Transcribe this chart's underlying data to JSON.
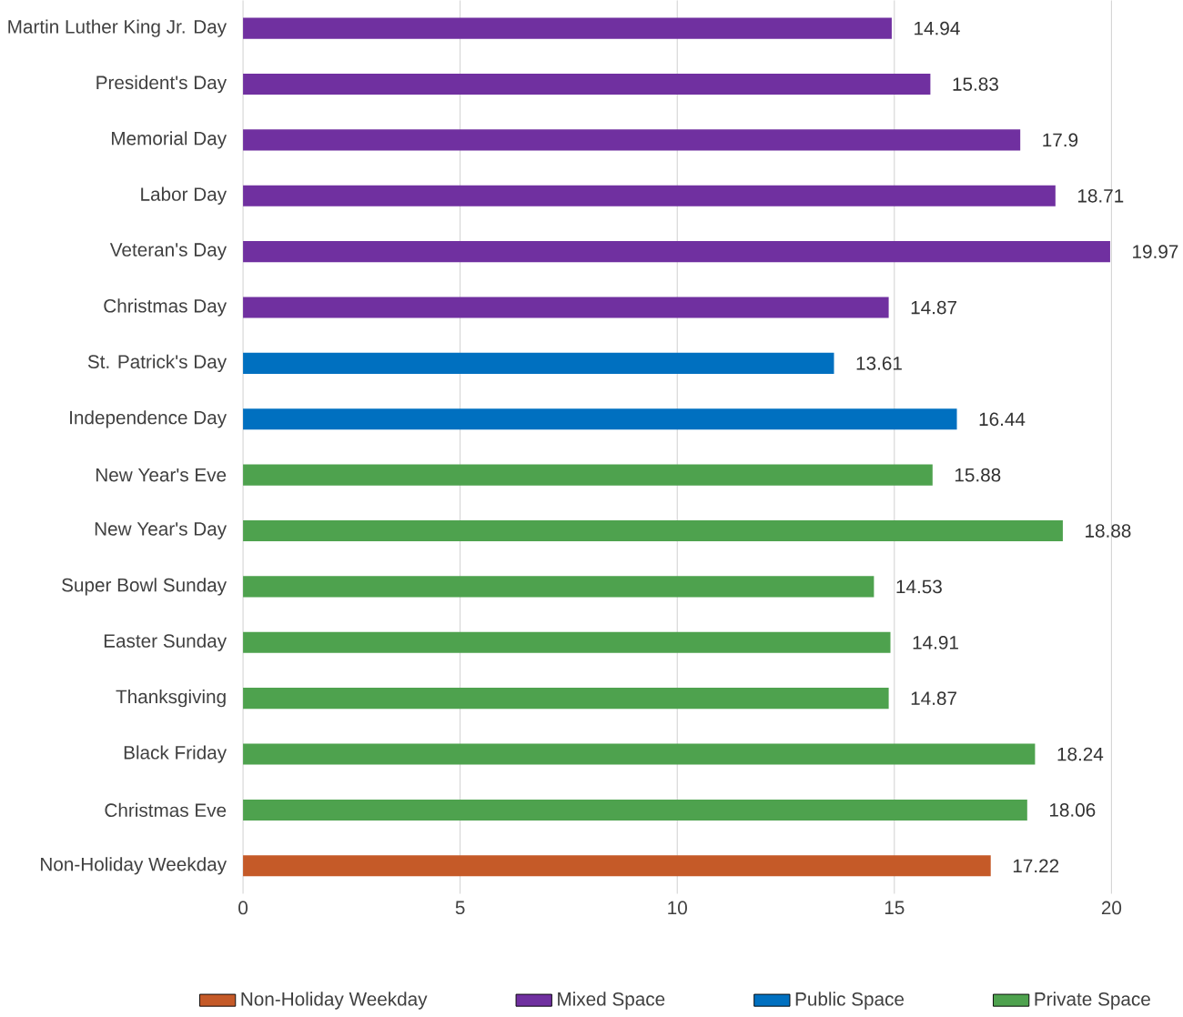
{
  "chart_data": {
    "type": "bar",
    "orientation": "horizontal",
    "categories": [
      "Martin Luther King Jr. Day",
      "President's Day",
      "Memorial Day",
      "Labor Day",
      "Veteran's Day",
      "Christmas Day",
      "St. Patrick's Day",
      "Independence Day",
      "New Year's Eve",
      "New Year's Day",
      "Super Bowl Sunday",
      "Easter Sunday",
      "Thanksgiving",
      "Black Friday",
      "Christmas Eve",
      "Non-Holiday Weekday"
    ],
    "series": [
      {
        "name": "Non-Holiday Weekday",
        "color": "#c55a28",
        "values": [
          null,
          null,
          null,
          null,
          null,
          null,
          null,
          null,
          null,
          null,
          null,
          null,
          null,
          null,
          null,
          17.22
        ]
      },
      {
        "name": "Mixed Space",
        "color": "#7030a0",
        "values": [
          14.94,
          15.83,
          17.9,
          18.71,
          19.97,
          14.87,
          null,
          null,
          null,
          null,
          null,
          null,
          null,
          null,
          null,
          null
        ]
      },
      {
        "name": "Public Space",
        "color": "#0070c0",
        "values": [
          null,
          null,
          null,
          null,
          null,
          null,
          13.61,
          16.44,
          null,
          null,
          null,
          null,
          null,
          null,
          null,
          null
        ]
      },
      {
        "name": "Private Space",
        "color": "#4ea24e",
        "values": [
          null,
          null,
          null,
          null,
          null,
          null,
          null,
          null,
          15.88,
          18.88,
          14.53,
          14.91,
          14.87,
          18.24,
          18.06,
          null
        ]
      }
    ],
    "xlim": [
      0,
      20
    ],
    "xticks": [
      0,
      5,
      10,
      15,
      20
    ],
    "grid": "x",
    "legend": "bottom",
    "data_labels": true
  }
}
